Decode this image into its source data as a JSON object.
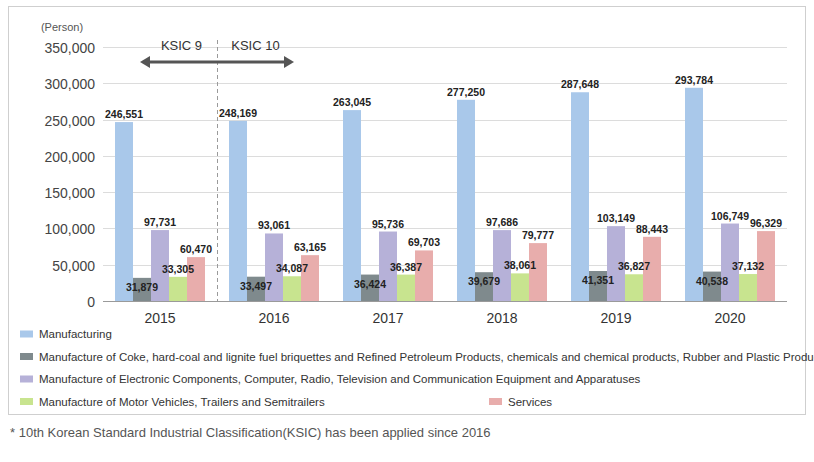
{
  "chart_data": {
    "type": "bar",
    "ylabel": "(Person)",
    "categories": [
      "2015",
      "2016",
      "2017",
      "2018",
      "2019",
      "2020"
    ],
    "series": [
      {
        "name": "Manufacturing",
        "color": "#a9c8ea",
        "values": [
          246551,
          248169,
          263045,
          277250,
          287648,
          293784
        ],
        "value_labels": [
          "246,551",
          "248,169",
          "263,045",
          "277,250",
          "287,648",
          "293,784"
        ]
      },
      {
        "name": "Manufacture of Coke, hard-coal and lignite fuel briquettes and Refined Petroleum Products, chemicals and chemical products, Rubber and Plastic Products",
        "color": "#7f8a8d",
        "values": [
          31879,
          33497,
          36424,
          39679,
          41351,
          40538
        ],
        "value_labels": [
          "31,879",
          "33,497",
          "36,424",
          "39,679",
          "41,351",
          "40,538"
        ]
      },
      {
        "name": "Manufacture of Electronic Components, Computer, Radio, Television and Communication Equipment and Apparatuses",
        "color": "#b6b1d8",
        "values": [
          97731,
          93061,
          95736,
          97686,
          103149,
          106749
        ],
        "value_labels": [
          "97,731",
          "93,061",
          "95,736",
          "97,686",
          "103,149",
          "106,749"
        ]
      },
      {
        "name": "Manufacture of Motor Vehicles, Trailers and Semitrailers",
        "color": "#c8e48f",
        "values": [
          33305,
          34087,
          36387,
          38061,
          36827,
          37132
        ],
        "value_labels": [
          "33,305",
          "34,087",
          "36,387",
          "38,061",
          "36,827",
          "37,132"
        ]
      },
      {
        "name": "Services",
        "color": "#e8adac",
        "values": [
          60470,
          63165,
          69703,
          79777,
          88443,
          96329
        ],
        "value_labels": [
          "60,470",
          "63,165",
          "69,703",
          "79,777",
          "88,443",
          "96,329"
        ]
      }
    ],
    "ylim": [
      0,
      350000
    ],
    "yticks": [
      0,
      {
        "value": 50000,
        "label": "50,000"
      },
      {
        "value": 100000,
        "label": "100,000"
      },
      {
        "value": 150000,
        "label": "150,000"
      },
      {
        "value": 200000,
        "label": "200,000"
      },
      {
        "value": 250000,
        "label": "250,000"
      },
      {
        "value": 300000,
        "label": "300,000"
      },
      {
        "value": 350000,
        "label": "350,000"
      }
    ],
    "grid": true,
    "legend": "bottom",
    "data_labels": true,
    "annotations": [
      "KSIC 9",
      "KSIC 10"
    ],
    "footnote": "* 10th Korean Standard Industrial Classification(KSIC) has been applied since 2016"
  }
}
